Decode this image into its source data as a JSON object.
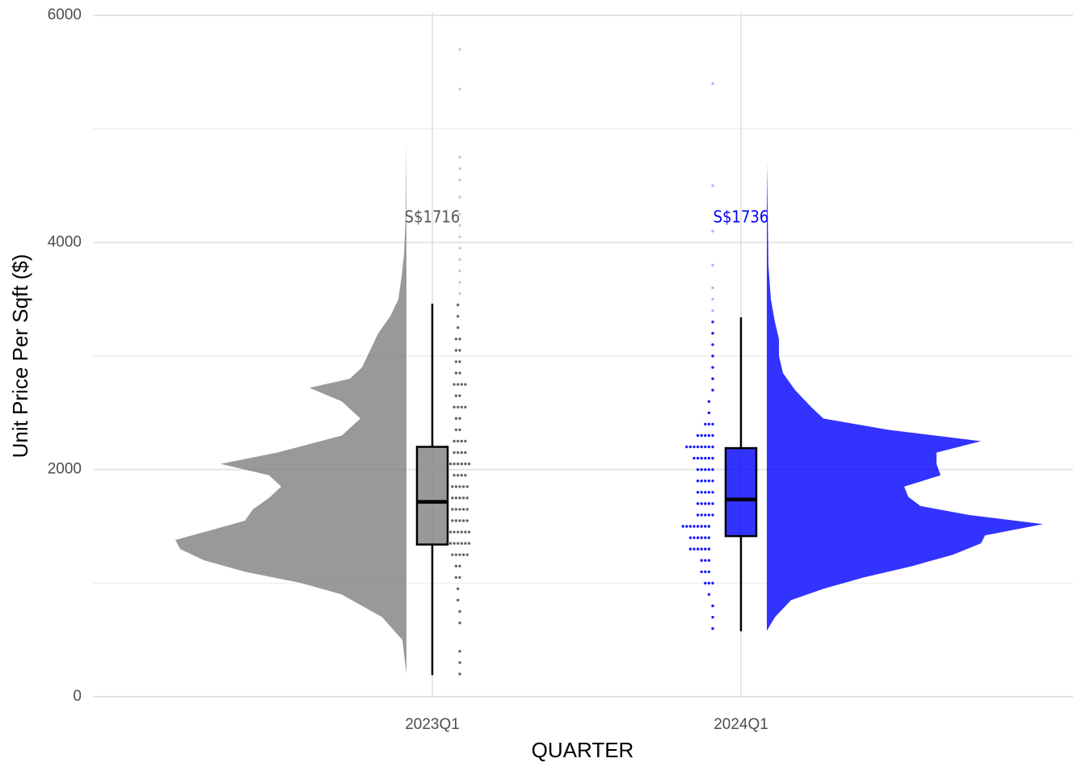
{
  "chart_data": {
    "type": "raincloud",
    "x_label": "QUARTER",
    "y_label": "Unit Price Per Sqft ($)",
    "categories": [
      "2023Q1",
      "2024Q1"
    ],
    "ylim": [
      0,
      6000
    ],
    "yticks": [
      0,
      2000,
      4000,
      6000
    ],
    "y_minor_ticks": [
      1000,
      3000,
      5000
    ],
    "grid": true,
    "groups": [
      {
        "color": "#808080",
        "dot_color": "#555555",
        "cloud_side": "left",
        "dot_side": "center",
        "box": {
          "whisker_low": 190,
          "q1": 1340,
          "median": 1716,
          "q3": 2200,
          "whisker_high": 3460
        },
        "median_label": "S$1716",
        "density": {
          "y": [
            200,
            500,
            700,
            900,
            1000,
            1100,
            1200,
            1300,
            1380,
            1450,
            1550,
            1650,
            1750,
            1850,
            1950,
            2050,
            2150,
            2300,
            2450,
            2600,
            2720,
            2800,
            2900,
            3050,
            3200,
            3350,
            3500,
            3700,
            3900,
            4200,
            4900
          ],
          "values": [
            0,
            5,
            30,
            80,
            130,
            200,
            250,
            280,
            286,
            250,
            200,
            190,
            170,
            155,
            170,
            230,
            160,
            80,
            57,
            80,
            120,
            70,
            55,
            45,
            35,
            20,
            10,
            6,
            3,
            1,
            0
          ]
        },
        "dots": {
          "y": [
            200,
            300,
            400,
            650,
            750,
            850,
            950,
            1050,
            1150,
            1250,
            1350,
            1450,
            1550,
            1650,
            1750,
            1850,
            1950,
            2050,
            2150,
            2250,
            2350,
            2450,
            2550,
            2650,
            2750,
            2850,
            2950,
            3050,
            3150,
            3250,
            3350,
            3450,
            3550,
            3650,
            3750,
            3850,
            3950,
            4050,
            4150,
            4250,
            4400,
            4550,
            4650,
            4750,
            5350,
            5700
          ],
          "counts": [
            1,
            1,
            1,
            1,
            1,
            2,
            2,
            3,
            3,
            5,
            8,
            6,
            5,
            5,
            5,
            5,
            4,
            6,
            4,
            4,
            3,
            3,
            4,
            3,
            4,
            3,
            3,
            3,
            3,
            2,
            2,
            2,
            1,
            1,
            1,
            1,
            1,
            1,
            1,
            1,
            1,
            1,
            1,
            1,
            1,
            1
          ]
        }
      },
      {
        "color": "#0000ff",
        "dot_color": "#0000ff",
        "cloud_side": "right",
        "dot_side": "left",
        "box": {
          "whisker_low": 576,
          "q1": 1414,
          "median": 1736,
          "q3": 2189,
          "whisker_high": 3340
        },
        "median_label": "S$1736",
        "density": {
          "y": [
            580,
            700,
            850,
            950,
            1050,
            1150,
            1250,
            1350,
            1420,
            1520,
            1600,
            1680,
            1760,
            1850,
            1950,
            2050,
            2150,
            2250,
            2350,
            2450,
            2550,
            2700,
            2850,
            3000,
            3150,
            3300,
            3500,
            3800,
            4300,
            4700
          ],
          "values": [
            0,
            10,
            30,
            70,
            120,
            180,
            230,
            265,
            270,
            342,
            250,
            190,
            175,
            170,
            215,
            210,
            210,
            265,
            150,
            70,
            55,
            35,
            20,
            15,
            15,
            10,
            5,
            2,
            1,
            0
          ]
        },
        "dots": {
          "y": [
            600,
            700,
            800,
            900,
            1000,
            1100,
            1200,
            1300,
            1400,
            1500,
            1600,
            1700,
            1800,
            1900,
            2000,
            2100,
            2200,
            2300,
            2400,
            2500,
            2600,
            2700,
            2800,
            2900,
            3000,
            3100,
            3200,
            3300,
            3400,
            3500,
            3600,
            3800,
            4100,
            4500,
            5400
          ],
          "counts": [
            1,
            1,
            1,
            2,
            3,
            4,
            4,
            7,
            7,
            9,
            5,
            5,
            5,
            5,
            5,
            6,
            8,
            5,
            3,
            2,
            2,
            1,
            1,
            1,
            1,
            1,
            1,
            1,
            1,
            1,
            1,
            1,
            1,
            1,
            1
          ]
        }
      }
    ]
  }
}
